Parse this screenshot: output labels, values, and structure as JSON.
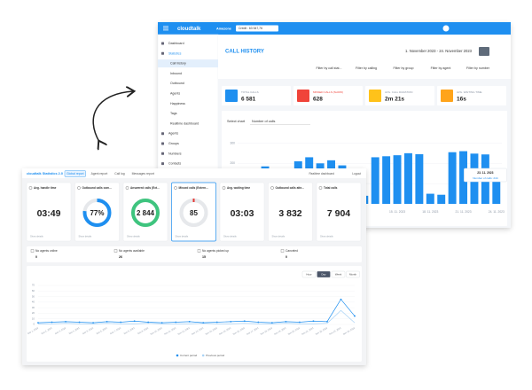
{
  "back_window": {
    "header": {
      "logo": "cloudtalk",
      "company": "Amazone",
      "credit": "Credit : 63 547,76"
    },
    "sidebar": [
      "Dashboard",
      "Statistics",
      "Call history",
      "Inbound",
      "Outbound",
      "Agents",
      "Happiness",
      "Tags",
      "Realtime dashboard",
      "Agents",
      "Groups",
      "Numbers",
      "Contacts"
    ],
    "selected_item": "Call history",
    "title": "CALL HISTORY",
    "date_range": "1. November 2023 - 24. November 2023",
    "filters": [
      "Filter by call stat...",
      "Filter by calling",
      "Filter by group",
      "Filter by agent",
      "Filter by number"
    ],
    "stats": [
      {
        "label": "TOTAL CALLS",
        "value": "6 581",
        "color": "#1e8ff0"
      },
      {
        "label": "MISSED CALLS (SHOW)",
        "value": "628",
        "color": "#f0443a"
      },
      {
        "label": "AVG. CALL DURATION",
        "value": "2m 21s",
        "color": "#ffc21a"
      },
      {
        "label": "AVG. WAITING TIME",
        "value": "16s",
        "color": "#ffa41b"
      }
    ],
    "chart_selector": {
      "label": "Select chart",
      "value": "Number of calls"
    },
    "chart": {
      "type": "bar",
      "categories": [
        null,
        null,
        null,
        null,
        null,
        null,
        null,
        null,
        null,
        null,
        null,
        null,
        null,
        null,
        "15. 11. 2023",
        null,
        null,
        "18. 11. 2023",
        null,
        null,
        "21. 11. 2023",
        null,
        null,
        "24. 11. 2023"
      ],
      "values": [
        120,
        160,
        185,
        40,
        35,
        210,
        230,
        200,
        215,
        190,
        45,
        40,
        230,
        235,
        240,
        250,
        245,
        50,
        45,
        255,
        260,
        248,
        244,
        140
      ],
      "color": "#1e8ff0",
      "ylim": [
        0,
        350
      ],
      "yticks": [
        100,
        200,
        300
      ],
      "grid": true,
      "tooltip": {
        "index": 22,
        "title": "23. 11. 2023",
        "text": "Number of calls: 244"
      }
    }
  },
  "front_window": {
    "logo": "cloudtalk Statistics 2.0",
    "tabs": [
      "Global report",
      "Agent report",
      "Call log",
      "Messages report"
    ],
    "selected_tab": "Global report",
    "header_links": [
      "Realtime dashboard",
      "Logout"
    ],
    "cards": [
      {
        "title": "Avg. handle time",
        "value": "03:49",
        "footer": "Show details"
      },
      {
        "title": "Outbound calls com...",
        "value": "77%",
        "percent": 77,
        "ring_color": "#1e8ff0",
        "footer": "Show details"
      },
      {
        "title": "Answered calls (Ext...",
        "value": "2 844",
        "ring_color": "#3ec47e",
        "footer": "Show details"
      },
      {
        "title": "Missed calls (Extern...",
        "value": "85",
        "ring_color": "#e6e8eb",
        "highlight": true,
        "footer": "Show details"
      },
      {
        "title": "Avg. waiting time",
        "value": "03:03",
        "footer": "Show details"
      },
      {
        "title": "Outbound calls atte...",
        "value": "3 832",
        "footer": "Show details"
      },
      {
        "title": "Total calls",
        "value": "7 904",
        "footer": "Show details"
      }
    ],
    "availability": [
      {
        "label": "No agents online",
        "value": "0"
      },
      {
        "label": "No agents available",
        "value": "26"
      },
      {
        "label": "No agents picked up",
        "value": "15"
      },
      {
        "label": "Canceled",
        "value": "0"
      }
    ],
    "range_buttons": [
      "Hour",
      "Day",
      "Week",
      "Month"
    ],
    "selected_range": "Day",
    "chart": {
      "type": "line",
      "categories": [
        "Nov 1, 2023",
        "Nov 2, 2023",
        "Nov 3, 2023",
        "Nov 4, 2023",
        "Nov 5, 2023",
        "Nov 6, 2023",
        "Nov 7, 2023",
        "Nov 8, 2023",
        "Nov 9, 2023",
        "Nov 10, 2023",
        "Nov 11, 2023",
        "Nov 12, 2023",
        "Nov 13, 2023",
        "Nov 14, 2023",
        "Nov 15, 2023",
        "Nov 16, 2023",
        "Nov 17, 2023",
        "Nov 18, 2023",
        "Nov 19, 2023",
        "Nov 20, 2023",
        "Nov 21, 2023",
        "Nov 22, 2023",
        "Nov 23, 2023",
        "Nov 24, 2023"
      ],
      "series": [
        {
          "name": "Current period",
          "color": "#1e8ff0",
          "values": [
            3,
            4,
            5,
            4,
            3,
            5,
            4,
            6,
            4,
            3,
            4,
            5,
            3,
            4,
            5,
            6,
            4,
            3,
            5,
            4,
            6,
            5,
            45,
            15
          ]
        },
        {
          "name": "Previous period",
          "color": "#a9d2f5",
          "values": [
            1,
            1,
            2,
            1,
            1,
            2,
            1,
            1,
            2,
            1,
            1,
            1,
            2,
            1,
            1,
            2,
            1,
            1,
            2,
            1,
            1,
            2,
            25,
            3
          ]
        }
      ],
      "ylim": [
        0,
        70
      ],
      "yticks": [
        0,
        10,
        20,
        30,
        40,
        50,
        60,
        70
      ],
      "grid": true
    }
  }
}
